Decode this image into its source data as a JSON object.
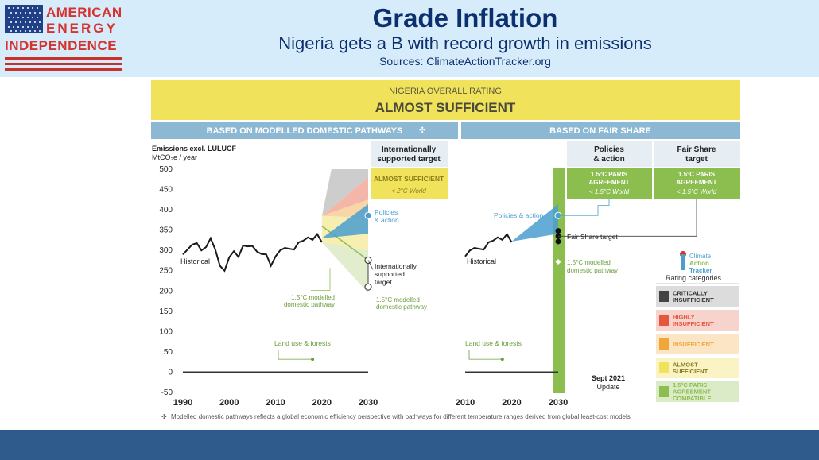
{
  "header": {
    "logo_line1": "AMERICAN",
    "logo_line2": "ENERGY",
    "logo_line3": "INDEPENDENCE",
    "title": "Grade Inflation",
    "subtitle": "Nigeria gets a B with record growth in emissions",
    "sources": "Sources: ClimateActionTracker.org"
  },
  "colors": {
    "header_bg": "#d7ecfa",
    "title": "#0c2f6e",
    "logo_red": "#d6322e",
    "footer": "#2f5b8c",
    "rating_bar": "#f1e25b",
    "section_bar": "#8db8d3",
    "historical": "#1a1a1a",
    "policies": "#4a9fcf",
    "paris_green": "#8bbe4f",
    "almost_yellow": "#f1e25b",
    "insufficient_orange": "#f0a73a",
    "highly_red": "#e5563d",
    "critically_grey": "#444444"
  },
  "chart_data": {
    "type": "line",
    "rating_label": "NIGERIA OVERALL RATING",
    "rating": "ALMOST SUFFICIENT",
    "section_left": "BASED ON MODELLED DOMESTIC PATHWAYS",
    "section_left_marker": "✣",
    "section_right": "BASED ON FAIR SHARE",
    "ylabel": "Emissions excl. LULUCF",
    "yunit": "MtCO₂e / year",
    "ylim": [
      -50,
      500
    ],
    "yticks": [
      "500",
      "450",
      "400",
      "350",
      "300",
      "250",
      "200",
      "150",
      "100",
      "50",
      "0",
      "-50"
    ],
    "left_panel": {
      "xlim": [
        1990,
        2030
      ],
      "xticks": [
        "1990",
        "2000",
        "2010",
        "2020",
        "2030"
      ],
      "historical_label": "Historical",
      "historical": {
        "x": [
          1990,
          1991,
          1992,
          1993,
          1994,
          1995,
          1996,
          1997,
          1998,
          1999,
          2000,
          2001,
          2002,
          2003,
          2004,
          2005,
          2006,
          2007,
          2008,
          2009,
          2010,
          2011,
          2012,
          2013,
          2014,
          2015,
          2016,
          2017,
          2018,
          2019,
          2020
        ],
        "y": [
          290,
          302,
          314,
          318,
          300,
          308,
          330,
          302,
          262,
          250,
          283,
          298,
          284,
          312,
          310,
          311,
          297,
          291,
          290,
          262,
          285,
          300,
          306,
          304,
          302,
          320,
          324,
          332,
          326,
          340,
          320
        ]
      },
      "policies_label": "Policies & action",
      "policies_end": 386,
      "target_label": "Internationally supported target",
      "target_upper": 276,
      "target_lower": 210,
      "domestic_label_left": "1.5°C modelled domestic pathway",
      "domestic_label_right": "1.5°C modelled domestic pathway",
      "land_use_label": "Land use & forests",
      "land_use_point": 32
    },
    "right_panel": {
      "xlim": [
        2010,
        2030
      ],
      "xticks": [
        "2010",
        "2020",
        "2030"
      ],
      "historical_label": "Historical",
      "historical": {
        "x": [
          2010,
          2011,
          2012,
          2013,
          2014,
          2015,
          2016,
          2017,
          2018,
          2019,
          2020
        ],
        "y": [
          285,
          300,
          306,
          304,
          302,
          320,
          324,
          332,
          326,
          340,
          320
        ]
      },
      "policies_label": "Policies & action",
      "policies_end": 386,
      "fair_share_label": "Fair Share target",
      "fair_share_points": [
        348,
        335,
        322
      ],
      "domestic_label": "1.5°C modelled domestic pathway",
      "domestic_point": 272,
      "land_use_label": "Land use & forests"
    },
    "columns": {
      "col1_title": "Internationally supported target",
      "col1_rating": "ALMOST SUFFICIENT",
      "col1_sub": "< 2°C World",
      "col2_title": "Policies & action",
      "col2_rating": "1.5°C PARIS AGREEMENT",
      "col2_sub": "< 1.5°C World",
      "col3_title": "Fair Share target",
      "col3_rating": "1.5°C PARIS AGREEMENT",
      "col3_sub": "< 1.5°C World"
    },
    "legend": {
      "brand1": "Climate",
      "brand2": "Action",
      "brand3": "Tracker",
      "title": "Rating categories",
      "items": [
        {
          "label1": "CRITICALLY",
          "label2": "INSUFFICIENT",
          "color": "#444444",
          "bg": "#dcdcdc",
          "text": "#333333"
        },
        {
          "label1": "HIGHLY",
          "label2": "INSUFFICIENT",
          "color": "#e5563d",
          "bg": "#f6d3cc",
          "text": "#e5563d"
        },
        {
          "label1": "INSUFFICIENT",
          "label2": "",
          "color": "#f0a73a",
          "bg": "#fbe5c5",
          "text": "#f0a73a"
        },
        {
          "label1": "ALMOST",
          "label2": "SUFFICIENT",
          "color": "#f1e25b",
          "bg": "#faf3c4",
          "text": "#8a7d1a"
        },
        {
          "label1": "1.5°C PARIS",
          "label2": "AGREEMENT",
          "label3": "COMPATIBLE",
          "color": "#8bbe4f",
          "bg": "#dcebc7",
          "text": "#8bbe4f"
        }
      ]
    },
    "update_label1": "Sept 2021",
    "update_label2": "Update",
    "footnote_marker": "✣",
    "footnote": "Modelled domestic pathways reflects a global economic efficiency perspective with pathways for different temperature ranges derived from global least-cost models"
  }
}
